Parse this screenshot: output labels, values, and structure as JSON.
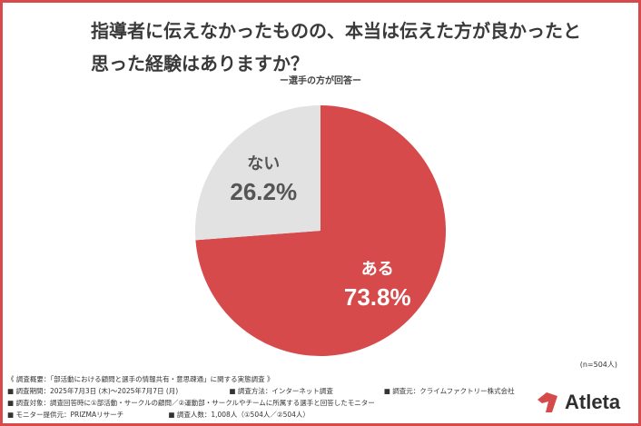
{
  "title": "指導者に伝えなかったものの、本当は伝えた方が良かったと思った経験はありますか？",
  "subtitle": "ー選手の方が回答ー",
  "chart_data": {
    "type": "pie",
    "slices": [
      {
        "label": "ある",
        "value": 73.8,
        "value_label": "73.8%",
        "color": "#d64a4b",
        "text_color": "#ffffff"
      },
      {
        "label": "ない",
        "value": 26.2,
        "value_label": "26.2%",
        "color": "#e2e2e2",
        "text_color": "#555555"
      }
    ]
  },
  "n_label": "(n=504人)",
  "footer": {
    "line1": "《 調査概要：「部活動における顧問と選手の情報共有・意思疎通」に関する実態調査 》",
    "period": "■ 調査期間：2025年7月3日 (木)～2025年7月7日 (月)",
    "method": "■ 調査方法：インターネット調査",
    "organizer": "■ 調査元：クライムファクトリー株式会社",
    "target": "■ 調査対象：調査回答時に①部活動・サークルの顧問／②運動部・サークルやチームに所属する選手と回答したモニター",
    "provider": "■ モニター提供元：PRIZMAリサーチ",
    "count": "■ 調査人数：1,008人（①504人／②504人）"
  },
  "logo": {
    "text": "Atleta",
    "color": "#d64a4b"
  }
}
